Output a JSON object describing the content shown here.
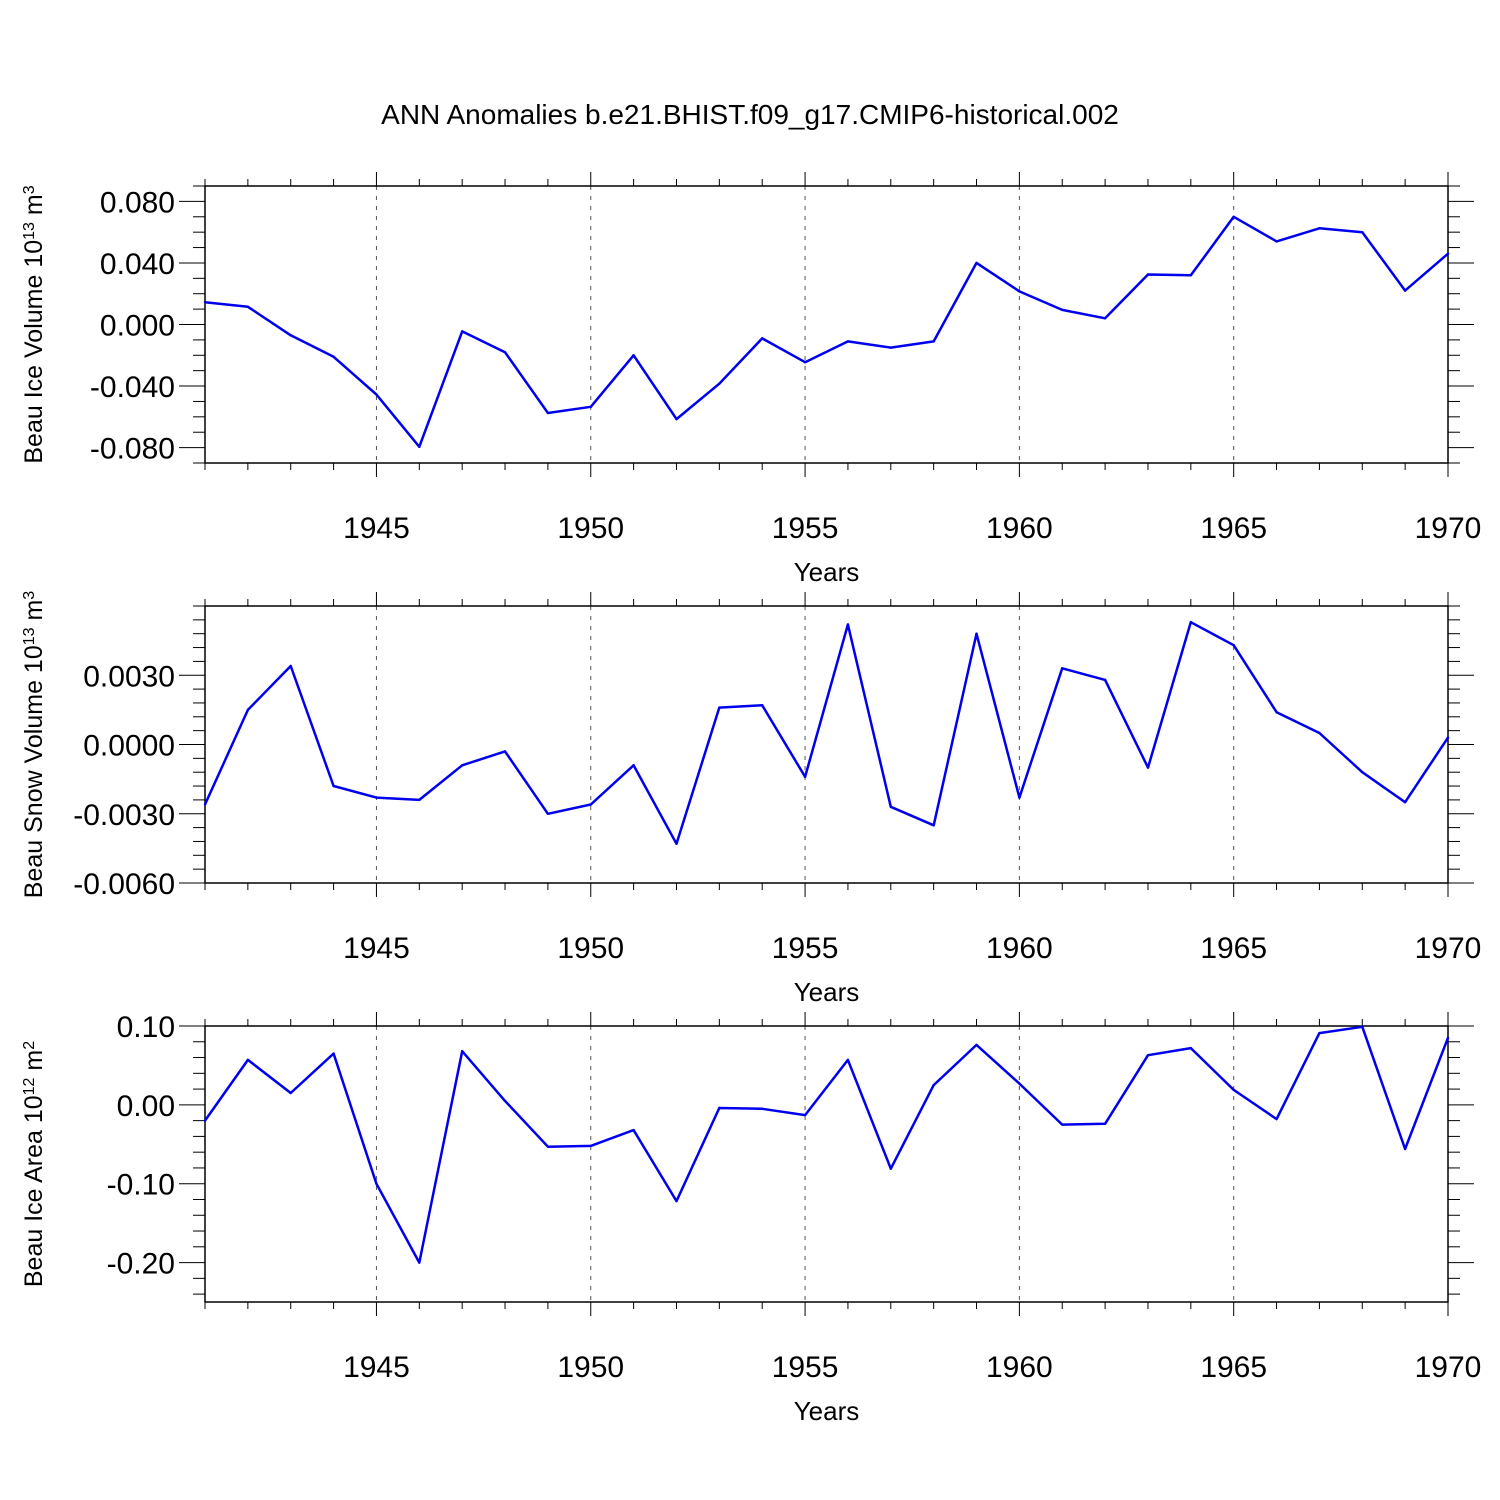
{
  "title": "ANN Anomalies b.e21.BHIST.f09_g17.CMIP6-historical.002",
  "colors": {
    "line": "#0000ee",
    "axis": "#000000",
    "grid": "#555555"
  },
  "chart_data": [
    {
      "type": "line",
      "ylabel_base": "Beau Ice Volume 10",
      "ylabel_exp": "13",
      "ylabel_unit": " m",
      "ylabel_unit_exp": "3",
      "xlabel": "Years",
      "xlim": [
        1941,
        1970
      ],
      "ylim": [
        -0.09,
        0.09
      ],
      "yticks": [
        -0.08,
        -0.04,
        0.0,
        0.04,
        0.08
      ],
      "yticklabels": [
        "-0.080",
        "-0.040",
        "0.000",
        "0.040",
        "0.080"
      ],
      "yminor": 0.01,
      "xticks": [
        1945,
        1950,
        1955,
        1960,
        1965,
        1970
      ],
      "xticklabels": [
        "1945",
        "1950",
        "1955",
        "1960",
        "1965",
        "1970"
      ],
      "x": [
        1941,
        1942,
        1943,
        1944,
        1945,
        1946,
        1947,
        1948,
        1949,
        1950,
        1951,
        1952,
        1953,
        1954,
        1955,
        1956,
        1957,
        1958,
        1959,
        1960,
        1961,
        1962,
        1963,
        1964,
        1965,
        1966,
        1967,
        1968,
        1969,
        1970
      ],
      "y": [
        0.0145,
        0.0115,
        -0.007,
        -0.021,
        -0.0455,
        -0.0795,
        -0.0045,
        -0.018,
        -0.0575,
        -0.0535,
        -0.02,
        -0.0615,
        -0.0385,
        -0.009,
        -0.0245,
        -0.011,
        -0.015,
        -0.011,
        0.04,
        0.0215,
        0.0095,
        0.004,
        0.0325,
        0.032,
        0.07,
        0.054,
        0.0625,
        0.06,
        0.022,
        0.046
      ]
    },
    {
      "type": "line",
      "ylabel_base": "Beau Snow Volume 10",
      "ylabel_exp": "13",
      "ylabel_unit": " m",
      "ylabel_unit_exp": "3",
      "xlabel": "Years",
      "xlim": [
        1941,
        1970
      ],
      "ylim": [
        -0.006,
        0.006
      ],
      "yticks": [
        -0.006,
        -0.003,
        0.0,
        0.003
      ],
      "yticklabels": [
        "-0.0060",
        "-0.0030",
        "0.0000",
        "0.0030"
      ],
      "yminor": 0.0006,
      "xticks": [
        1945,
        1950,
        1955,
        1960,
        1965,
        1970
      ],
      "xticklabels": [
        "1945",
        "1950",
        "1955",
        "1960",
        "1965",
        "1970"
      ],
      "x": [
        1941,
        1942,
        1943,
        1944,
        1945,
        1946,
        1947,
        1948,
        1949,
        1950,
        1951,
        1952,
        1953,
        1954,
        1955,
        1956,
        1957,
        1958,
        1959,
        1960,
        1961,
        1962,
        1963,
        1964,
        1965,
        1966,
        1967,
        1968,
        1969,
        1970
      ],
      "y": [
        -0.0026,
        0.0015,
        0.0034,
        -0.0018,
        -0.0023,
        -0.0024,
        -0.0009,
        -0.0003,
        -0.003,
        -0.0026,
        -0.0009,
        -0.0043,
        0.0016,
        0.0017,
        -0.0014,
        0.0052,
        -0.0027,
        -0.0035,
        0.0048,
        -0.0023,
        0.0033,
        0.0028,
        -0.001,
        0.0053,
        0.0043,
        0.0014,
        0.0005,
        -0.0012,
        -0.0025,
        0.0003
      ]
    },
    {
      "type": "line",
      "ylabel_base": "Beau Ice Area 10",
      "ylabel_exp": "12",
      "ylabel_unit": " m",
      "ylabel_unit_exp": "2",
      "xlabel": "Years",
      "xlim": [
        1941,
        1970
      ],
      "ylim": [
        -0.25,
        0.1
      ],
      "yticks": [
        -0.2,
        -0.1,
        0.0,
        0.1
      ],
      "yticklabels": [
        "-0.20",
        "-0.10",
        "0.00",
        "0.10"
      ],
      "yminor": 0.02,
      "xticks": [
        1945,
        1950,
        1955,
        1960,
        1965,
        1970
      ],
      "xticklabels": [
        "1945",
        "1950",
        "1955",
        "1960",
        "1965",
        "1970"
      ],
      "x": [
        1941,
        1942,
        1943,
        1944,
        1945,
        1946,
        1947,
        1948,
        1949,
        1950,
        1951,
        1952,
        1953,
        1954,
        1955,
        1956,
        1957,
        1958,
        1959,
        1960,
        1961,
        1962,
        1963,
        1964,
        1965,
        1966,
        1967,
        1968,
        1969,
        1970
      ],
      "y": [
        -0.02,
        0.057,
        0.015,
        0.065,
        -0.1,
        -0.2,
        0.068,
        0.005,
        -0.053,
        -0.052,
        -0.032,
        -0.122,
        -0.004,
        -0.005,
        -0.013,
        0.057,
        -0.081,
        0.025,
        0.076,
        0.027,
        -0.025,
        -0.024,
        0.063,
        0.072,
        0.019,
        -0.018,
        0.091,
        0.099,
        -0.056,
        0.085
      ]
    }
  ]
}
